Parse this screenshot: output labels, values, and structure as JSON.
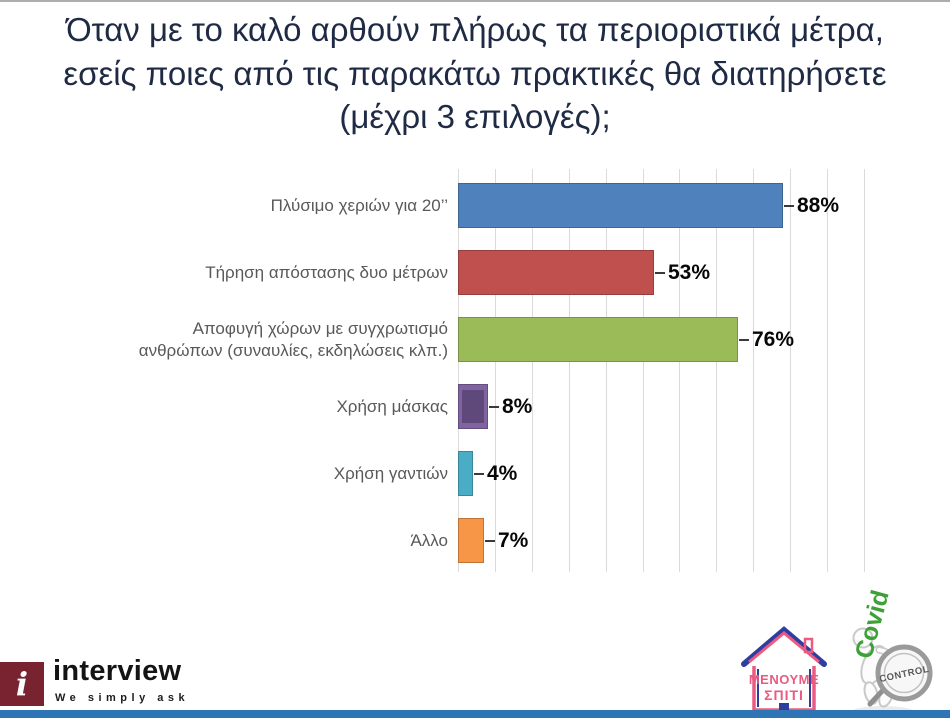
{
  "title": {
    "lines": [
      "Όταν με το καλό αρθούν πλήρως τα περιοριστικά μέτρα,",
      "εσείς ποιες από τις παρακάτω πρακτικές θα διατηρήσετε",
      "(μέχρι 3 επιλογές);"
    ]
  },
  "chart_data": {
    "type": "bar",
    "orientation": "horizontal",
    "title": "Όταν με το καλό αρθούν πλήρως τα περιοριστικά μέτρα, εσείς ποιες από τις παρακάτω πρακτικές θα διατηρήσετε (μέχρι 3 επιλογές);",
    "categories": [
      "Πλύσιμο χεριών για 20’’",
      "Τήρηση απόστασης δυο μέτρων",
      "Αποφυγή χώρων με συγχρωτισμό\nανθρώπων (συναυλίες, εκδηλώσεις κλπ.)",
      "Χρήση μάσκας",
      "Χρήση γαντιών",
      "Άλλο"
    ],
    "values": [
      88,
      53,
      76,
      8,
      4,
      7
    ],
    "value_labels": [
      "88%",
      "53%",
      "76%",
      "8%",
      "4%",
      "7%"
    ],
    "colors": [
      "#4F81BD",
      "#C0504D",
      "#9BBB59",
      "#8064A2",
      "#4BACC6",
      "#F79646"
    ],
    "inner_colors": [
      null,
      null,
      null,
      "#5F497A",
      null,
      null
    ],
    "xlim": [
      0,
      110
    ],
    "grid": "vertical gridlines every 10%",
    "legend": "none",
    "value_label_position": "right of bar"
  },
  "footer": {
    "brand": {
      "icon_letter": "i",
      "name": "interview",
      "tagline": "We simply ask"
    },
    "campaign": {
      "line1": "ΜΕΝΟΥΜΕ",
      "line2": "ΣΠΙΤΙ"
    },
    "mascot": {
      "vertical_text": "Covid",
      "stamp_text": "CONTROL"
    }
  },
  "colors": {
    "title_text": "#1F2A44",
    "category_text": "#595959",
    "grid_line": "#DBDBDB",
    "bottom_bar": "#2E75B6",
    "brand_box": "#7A2330",
    "mascot_green": "#3CA235",
    "campaign_pink": "#EA5A81",
    "campaign_blue": "#2F3E9E"
  }
}
